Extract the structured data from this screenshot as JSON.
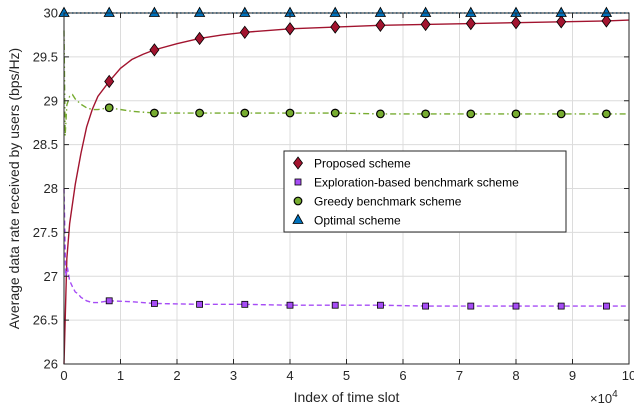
{
  "chart_data": {
    "type": "line",
    "xlabel": "Index of time slot",
    "ylabel": "Average data rate received by users (bps/Hz)",
    "x_multiplier_label": "×10",
    "x_multiplier_exponent": "4",
    "xlim": [
      0,
      100000
    ],
    "ylim": [
      26,
      30
    ],
    "x_ticks": [
      0,
      10000,
      20000,
      30000,
      40000,
      50000,
      60000,
      70000,
      80000,
      90000,
      100000
    ],
    "x_tick_labels": [
      "0",
      "1",
      "2",
      "3",
      "4",
      "5",
      "6",
      "7",
      "8",
      "9",
      "10"
    ],
    "y_ticks": [
      26,
      26.5,
      27,
      27.5,
      28,
      28.5,
      29,
      29.5,
      30
    ],
    "y_tick_labels": [
      "26",
      "26.5",
      "27",
      "27.5",
      "28",
      "28.5",
      "29",
      "29.5",
      "30"
    ],
    "grid": true,
    "legend_position": "center-right",
    "series": [
      {
        "name": "Proposed scheme",
        "color": "#A2142F",
        "linestyle": "solid",
        "marker": "diamond",
        "x": [
          0,
          500,
          1000,
          2000,
          3000,
          4000,
          5000,
          6000,
          8000,
          10000,
          12000,
          14000,
          16000,
          20000,
          24000,
          28000,
          32000,
          36000,
          40000,
          48000,
          56000,
          64000,
          72000,
          80000,
          88000,
          96000,
          100000
        ],
        "y": [
          26.0,
          27.2,
          27.6,
          28.05,
          28.4,
          28.7,
          28.9,
          29.05,
          29.22,
          29.37,
          29.47,
          29.53,
          29.58,
          29.65,
          29.71,
          29.75,
          29.78,
          29.8,
          29.82,
          29.84,
          29.86,
          29.87,
          29.88,
          29.89,
          29.9,
          29.91,
          29.92
        ],
        "marker_x": [
          8000,
          16000,
          24000,
          32000,
          40000,
          48000,
          56000,
          64000,
          72000,
          80000,
          88000,
          96000
        ]
      },
      {
        "name": "Exploration-based benchmark scheme",
        "color": "#A64CF5",
        "linestyle": "dashed",
        "marker": "square",
        "x": [
          0,
          300,
          600,
          1000,
          1500,
          2000,
          2500,
          3000,
          4000,
          5000,
          6000,
          8000,
          12000,
          16000,
          24000,
          32000,
          40000,
          48000,
          56000,
          64000,
          72000,
          80000,
          88000,
          96000,
          100000
        ],
        "y": [
          28.0,
          27.0,
          27.1,
          26.95,
          26.88,
          26.82,
          26.8,
          26.76,
          26.72,
          26.7,
          26.7,
          26.72,
          26.71,
          26.69,
          26.68,
          26.68,
          26.67,
          26.67,
          26.67,
          26.66,
          26.66,
          26.66,
          26.66,
          26.66,
          26.66
        ],
        "marker_x": [
          8000,
          16000,
          24000,
          32000,
          40000,
          48000,
          56000,
          64000,
          72000,
          80000,
          88000,
          96000
        ]
      },
      {
        "name": "Greedy benchmark scheme",
        "color": "#77AC30",
        "linestyle": "dashdot",
        "marker": "circle",
        "x": [
          0,
          200,
          500,
          1000,
          1500,
          2000,
          3000,
          4000,
          5000,
          6000,
          8000,
          12000,
          16000,
          24000,
          32000,
          40000,
          48000,
          56000,
          64000,
          72000,
          80000,
          88000,
          96000,
          100000
        ],
        "y": [
          29.8,
          28.6,
          28.95,
          29.05,
          29.07,
          29.02,
          28.96,
          28.92,
          28.9,
          28.9,
          28.92,
          28.88,
          28.86,
          28.86,
          28.86,
          28.86,
          28.86,
          28.85,
          28.85,
          28.85,
          28.85,
          28.85,
          28.85,
          28.85
        ],
        "marker_x": [
          8000,
          16000,
          24000,
          32000,
          40000,
          48000,
          56000,
          64000,
          72000,
          80000,
          88000,
          96000
        ]
      },
      {
        "name": "Optimal scheme",
        "color": "#0072BD",
        "linestyle": "dotted",
        "marker": "triangle",
        "x": [
          0,
          100000
        ],
        "y": [
          30.0,
          30.0
        ],
        "marker_x": [
          0,
          8000,
          16000,
          24000,
          32000,
          40000,
          48000,
          56000,
          64000,
          72000,
          80000,
          88000,
          96000
        ]
      }
    ]
  }
}
